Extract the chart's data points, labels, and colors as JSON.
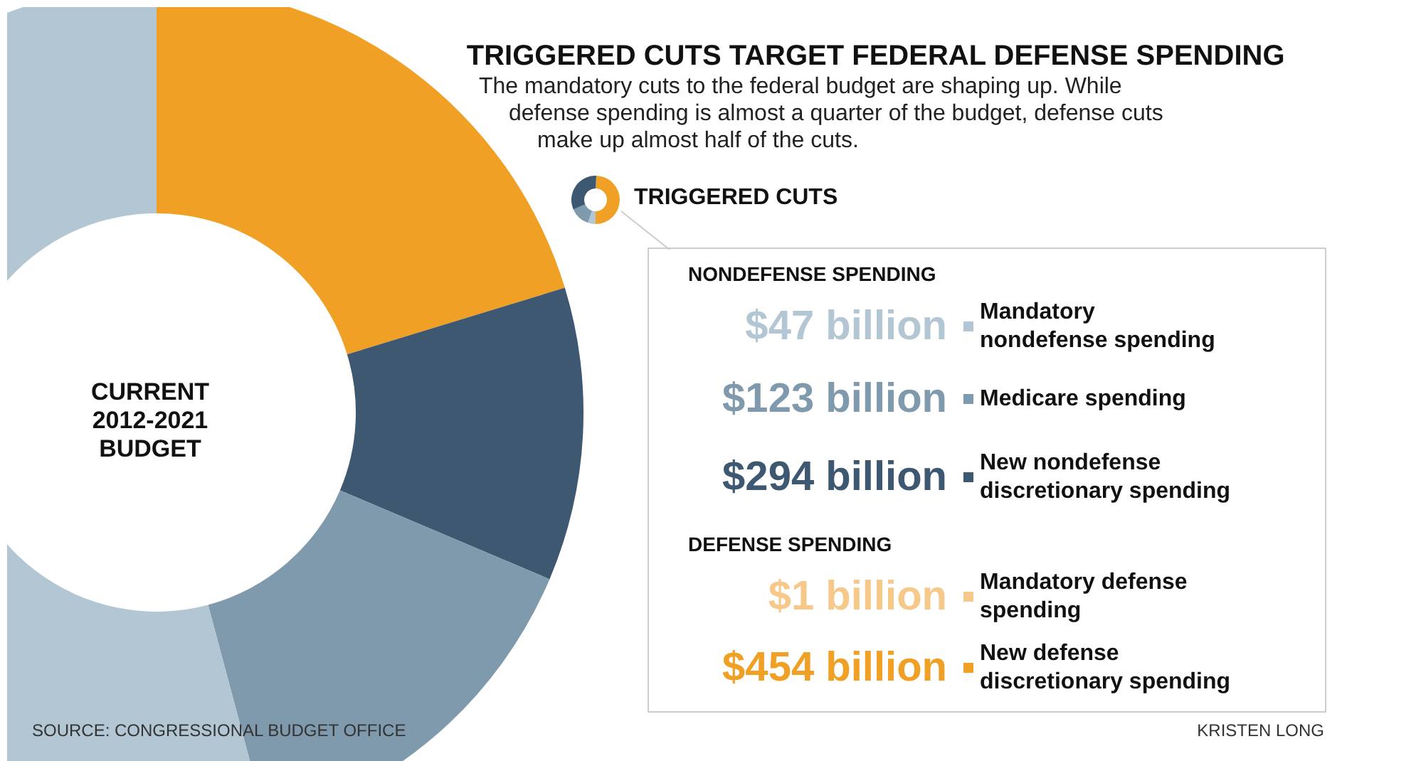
{
  "chart_data": {
    "type": "donut",
    "title": "TRIGGERED CUTS TARGET FEDERAL DEFENSE SPENDING",
    "subtitle": "The mandatory cuts to the federal budget are shaping up. While\ndefense spending is almost a quarter of the budget, defense cuts\nmake up almost half of the cuts.",
    "legend_title": "TRIGGERED CUTS",
    "categories": [
      "Mandatory\nnondefense spending",
      "Medicare spending",
      "New nondefense\ndiscretionary spending",
      "Mandatory defense\nspending",
      "New defense\ndiscretionary spending"
    ],
    "values": [
      47,
      123,
      294,
      1,
      454
    ],
    "value_labels": [
      "$47 billion",
      "$123 billion",
      "$294 billion",
      "$1 billion",
      "$454 billion"
    ],
    "colors": [
      "#b3c6d3",
      "#7f99ad",
      "#3d5870",
      "#f6c98a",
      "#f0a025"
    ],
    "legend": "right",
    "annotations": [
      "CURRENT\n2012-2021\nBUDGET",
      "NONDEFENSE SPENDING",
      "DEFENSE SPENDING",
      "SOURCE: CONGRESSIONAL BUDGET OFFICE",
      "KRISTEN LONG"
    ]
  }
}
